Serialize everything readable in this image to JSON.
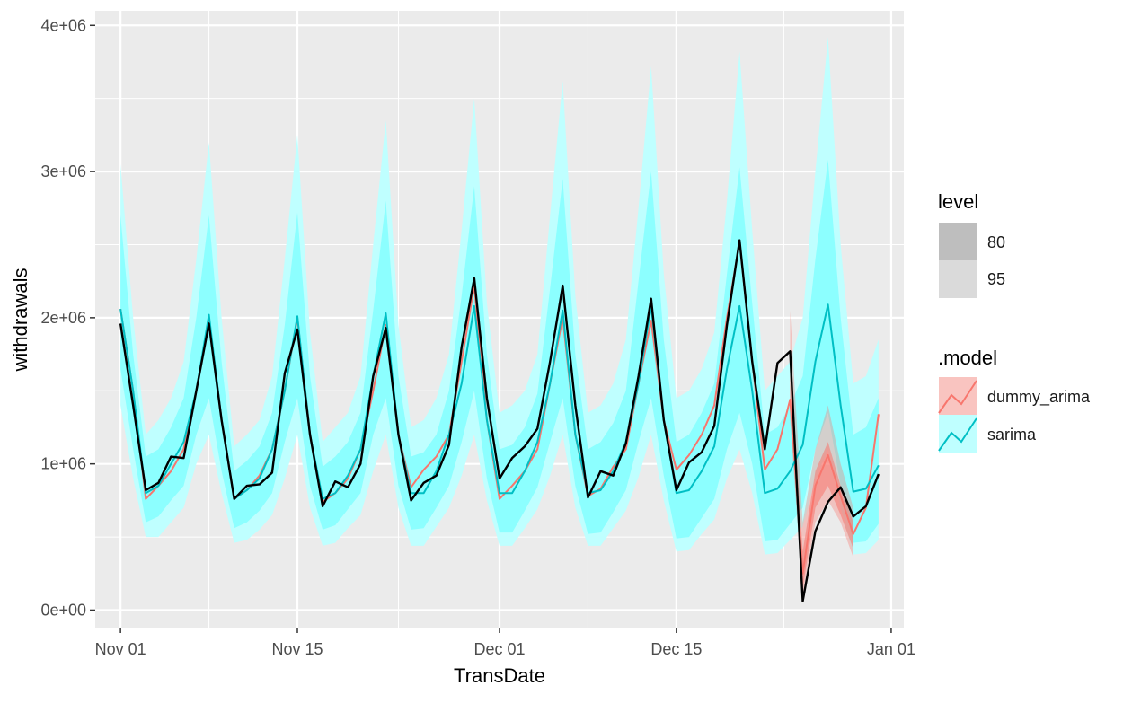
{
  "chart_data": {
    "type": "line",
    "title": "",
    "xlabel": "TransDate",
    "ylabel": "withdrawals",
    "xlim": [
      "2023-10-30",
      "2024-01-02"
    ],
    "ylim": [
      -120000.0,
      4100000.0
    ],
    "x_ticks": [
      {
        "label": "Nov 01",
        "date": "2023-11-01"
      },
      {
        "label": "Nov 15",
        "date": "2023-11-15"
      },
      {
        "label": "Dec 01",
        "date": "2023-12-01"
      },
      {
        "label": "Dec 15",
        "date": "2023-12-15"
      },
      {
        "label": "Jan 01",
        "date": "2024-01-01"
      }
    ],
    "y_ticks": [
      {
        "label": "0e+00",
        "value": 0
      },
      {
        "label": "1e+06",
        "value": 1000000
      },
      {
        "label": "2e+06",
        "value": 2000000
      },
      {
        "label": "3e+06",
        "value": 3000000
      },
      {
        "label": "4e+06",
        "value": 4000000
      }
    ],
    "x": [
      "2023-11-01",
      "2023-11-02",
      "2023-11-03",
      "2023-11-04",
      "2023-11-05",
      "2023-11-06",
      "2023-11-07",
      "2023-11-08",
      "2023-11-09",
      "2023-11-10",
      "2023-11-11",
      "2023-11-12",
      "2023-11-13",
      "2023-11-14",
      "2023-11-15",
      "2023-11-16",
      "2023-11-17",
      "2023-11-18",
      "2023-11-19",
      "2023-11-20",
      "2023-11-21",
      "2023-11-22",
      "2023-11-23",
      "2023-11-24",
      "2023-11-25",
      "2023-11-26",
      "2023-11-27",
      "2023-11-28",
      "2023-11-29",
      "2023-11-30",
      "2023-12-01",
      "2023-12-02",
      "2023-12-03",
      "2023-12-04",
      "2023-12-05",
      "2023-12-06",
      "2023-12-07",
      "2023-12-08",
      "2023-12-09",
      "2023-12-10",
      "2023-12-11",
      "2023-12-12",
      "2023-12-13",
      "2023-12-14",
      "2023-12-15",
      "2023-12-16",
      "2023-12-17",
      "2023-12-18",
      "2023-12-19",
      "2023-12-20",
      "2023-12-21",
      "2023-12-22",
      "2023-12-23",
      "2023-12-24",
      "2023-12-25",
      "2023-12-26",
      "2023-12-27",
      "2023-12-28",
      "2023-12-29",
      "2023-12-30",
      "2023-12-31"
    ],
    "series": [
      {
        "name": "sarima",
        "color": "#00BFC4",
        "values": [
          2060000,
          1500000,
          800000,
          850000,
          1000000,
          1150000,
          1500000,
          2020000,
          1300000,
          760000,
          820000,
          900000,
          1100000,
          1500000,
          2010000,
          1200000,
          760000,
          800000,
          920000,
          1100000,
          1600000,
          2030000,
          1200000,
          800000,
          800000,
          950000,
          1200000,
          1550000,
          2080000,
          1300000,
          800000,
          800000,
          950000,
          1150000,
          1550000,
          2050000,
          1200000,
          800000,
          820000,
          950000,
          1150000,
          1550000,
          2080000,
          1300000,
          800000,
          820000,
          950000,
          1120000,
          1650000,
          2080000,
          1500000,
          800000,
          830000,
          950000,
          1130000,
          1700000,
          2090000,
          1400000,
          810000,
          830000,
          990000
        ],
        "lo95": [
          1400000,
          900000,
          500000,
          500000,
          600000,
          700000,
          1000000,
          1200000,
          800000,
          460000,
          480000,
          550000,
          650000,
          900000,
          1200000,
          700000,
          440000,
          460000,
          560000,
          650000,
          950000,
          1200000,
          700000,
          440000,
          440000,
          570000,
          700000,
          920000,
          1200000,
          750000,
          440000,
          440000,
          560000,
          690000,
          920000,
          1200000,
          700000,
          440000,
          440000,
          560000,
          680000,
          910000,
          1200000,
          750000,
          400000,
          410000,
          520000,
          620000,
          900000,
          1100000,
          800000,
          380000,
          390000,
          480000,
          570000,
          900000,
          1100000,
          700000,
          380000,
          390000,
          480000
        ],
        "hi95": [
          3050000,
          2000000,
          1200000,
          1300000,
          1450000,
          1700000,
          2400000,
          3200000,
          2000000,
          1120000,
          1200000,
          1300000,
          1600000,
          2400000,
          3250000,
          1900000,
          1150000,
          1250000,
          1350000,
          1600000,
          2500000,
          3350000,
          1950000,
          1250000,
          1300000,
          1450000,
          1750000,
          2600000,
          3500000,
          2100000,
          1350000,
          1400000,
          1500000,
          1750000,
          2700000,
          3620000,
          2150000,
          1350000,
          1400000,
          1550000,
          1850000,
          2750000,
          3720000,
          2300000,
          1450000,
          1500000,
          1650000,
          1900000,
          2800000,
          3820000,
          2600000,
          1500000,
          1600000,
          1700000,
          2000000,
          3000000,
          3920000,
          2500000,
          1550000,
          1600000,
          1850000
        ],
        "lo80": [
          1650000,
          1100000,
          600000,
          640000,
          750000,
          850000,
          1200000,
          1450000,
          950000,
          560000,
          600000,
          680000,
          800000,
          1150000,
          1450000,
          850000,
          550000,
          580000,
          690000,
          800000,
          1200000,
          1450000,
          850000,
          550000,
          560000,
          700000,
          850000,
          1150000,
          1500000,
          900000,
          530000,
          530000,
          680000,
          840000,
          1150000,
          1450000,
          850000,
          520000,
          530000,
          670000,
          820000,
          1150000,
          1450000,
          920000,
          490000,
          500000,
          630000,
          760000,
          1100000,
          1350000,
          1000000,
          470000,
          480000,
          590000,
          700000,
          1100000,
          1350000,
          850000,
          460000,
          470000,
          590000
        ],
        "hi80": [
          2700000,
          1750000,
          1050000,
          1100000,
          1250000,
          1450000,
          2000000,
          2700000,
          1700000,
          950000,
          1020000,
          1120000,
          1350000,
          1950000,
          2720000,
          1600000,
          980000,
          1050000,
          1150000,
          1350000,
          2050000,
          2800000,
          1600000,
          1050000,
          1080000,
          1200000,
          1500000,
          2150000,
          2900000,
          1750000,
          1100000,
          1130000,
          1250000,
          1480000,
          2200000,
          2950000,
          1750000,
          1100000,
          1150000,
          1280000,
          1500000,
          2250000,
          3000000,
          1850000,
          1150000,
          1200000,
          1350000,
          1550000,
          2300000,
          3030000,
          2100000,
          1200000,
          1250000,
          1400000,
          1600000,
          2400000,
          3080000,
          2000000,
          1200000,
          1250000,
          1450000
        ]
      },
      {
        "name": "dummy_arima",
        "color": "#F8766D",
        "values": [
          2060000,
          1500000,
          760000,
          850000,
          950000,
          1100000,
          1500000,
          2000000,
          1300000,
          760000,
          820000,
          920000,
          1100000,
          1500000,
          2000000,
          1200000,
          740000,
          800000,
          900000,
          1100000,
          1500000,
          1950000,
          1200000,
          840000,
          960000,
          1050000,
          1200000,
          1700000,
          2220000,
          1300000,
          760000,
          850000,
          950000,
          1100000,
          1550000,
          2000000,
          1200000,
          780000,
          830000,
          980000,
          1100000,
          1550000,
          1980000,
          1300000,
          960000,
          1060000,
          1200000,
          1400000,
          2000000,
          2520000,
          1700000,
          960000,
          1100000,
          1440000,
          250000,
          850000,
          1060000,
          780000,
          520000,
          700000,
          1340000
        ],
        "lo95": [
          null,
          null,
          null,
          null,
          null,
          null,
          null,
          null,
          null,
          null,
          null,
          null,
          null,
          null,
          null,
          null,
          null,
          null,
          null,
          null,
          null,
          null,
          null,
          null,
          null,
          null,
          null,
          null,
          null,
          null,
          null,
          null,
          null,
          null,
          null,
          null,
          null,
          null,
          null,
          null,
          null,
          null,
          null,
          null,
          null,
          null,
          null,
          null,
          null,
          null,
          null,
          null,
          null,
          1300000,
          100000,
          600000,
          750000,
          600000,
          360000,
          null,
          null
        ],
        "hi95": [
          null,
          null,
          null,
          null,
          null,
          null,
          null,
          null,
          null,
          null,
          null,
          null,
          null,
          null,
          null,
          null,
          null,
          null,
          null,
          null,
          null,
          null,
          null,
          null,
          null,
          null,
          null,
          null,
          null,
          null,
          null,
          null,
          null,
          null,
          null,
          null,
          null,
          null,
          null,
          null,
          null,
          null,
          null,
          null,
          null,
          null,
          null,
          null,
          null,
          null,
          null,
          null,
          null,
          2050000,
          600000,
          1100000,
          1400000,
          1000000,
          700000,
          null,
          null
        ],
        "lo80": [
          null,
          null,
          null,
          null,
          null,
          null,
          null,
          null,
          null,
          null,
          null,
          null,
          null,
          null,
          null,
          null,
          null,
          null,
          null,
          null,
          null,
          null,
          null,
          null,
          null,
          null,
          null,
          null,
          null,
          null,
          null,
          null,
          null,
          null,
          null,
          null,
          null,
          null,
          null,
          null,
          null,
          null,
          null,
          null,
          null,
          null,
          null,
          null,
          null,
          null,
          null,
          null,
          null,
          1400000,
          150000,
          700000,
          850000,
          650000,
          420000,
          null,
          null
        ],
        "hi80": [
          null,
          null,
          null,
          null,
          null,
          null,
          null,
          null,
          null,
          null,
          null,
          null,
          null,
          null,
          null,
          null,
          null,
          null,
          null,
          null,
          null,
          null,
          null,
          null,
          null,
          null,
          null,
          null,
          null,
          null,
          null,
          null,
          null,
          null,
          null,
          null,
          null,
          null,
          null,
          null,
          null,
          null,
          null,
          null,
          null,
          null,
          null,
          null,
          null,
          null,
          null,
          null,
          null,
          1750000,
          400000,
          950000,
          1150000,
          850000,
          600000,
          null,
          null
        ]
      },
      {
        "name": "actual",
        "color": "#000000",
        "values": [
          1960000,
          1400000,
          820000,
          870000,
          1050000,
          1040000,
          1500000,
          1960000,
          1300000,
          760000,
          850000,
          860000,
          940000,
          1620000,
          1920000,
          1200000,
          710000,
          880000,
          840000,
          1000000,
          1600000,
          1930000,
          1200000,
          750000,
          870000,
          920000,
          1130000,
          1800000,
          2270000,
          1450000,
          900000,
          1040000,
          1120000,
          1240000,
          1700000,
          2220000,
          1400000,
          770000,
          950000,
          920000,
          1140000,
          1600000,
          2130000,
          1300000,
          820000,
          1010000,
          1080000,
          1260000,
          1950000,
          2530000,
          1700000,
          1100000,
          1690000,
          1770000,
          60000,
          540000,
          740000,
          840000,
          640000,
          710000,
          930000
        ]
      }
    ],
    "legend": {
      "position": "right",
      "level_title": "level",
      "level_items": [
        {
          "label": "80",
          "fill": "#BEBEBE"
        },
        {
          "label": "95",
          "fill": "#DADADA"
        }
      ],
      "model_title": ".model",
      "model_items": [
        {
          "label": "dummy_arima",
          "line": "#F8766D",
          "fill": "#F9C4C0"
        },
        {
          "label": "sarima",
          "line": "#00BFC4",
          "fill": "#BFFFFF"
        }
      ]
    },
    "grid": true,
    "panel_background": "#EBEBEB"
  }
}
